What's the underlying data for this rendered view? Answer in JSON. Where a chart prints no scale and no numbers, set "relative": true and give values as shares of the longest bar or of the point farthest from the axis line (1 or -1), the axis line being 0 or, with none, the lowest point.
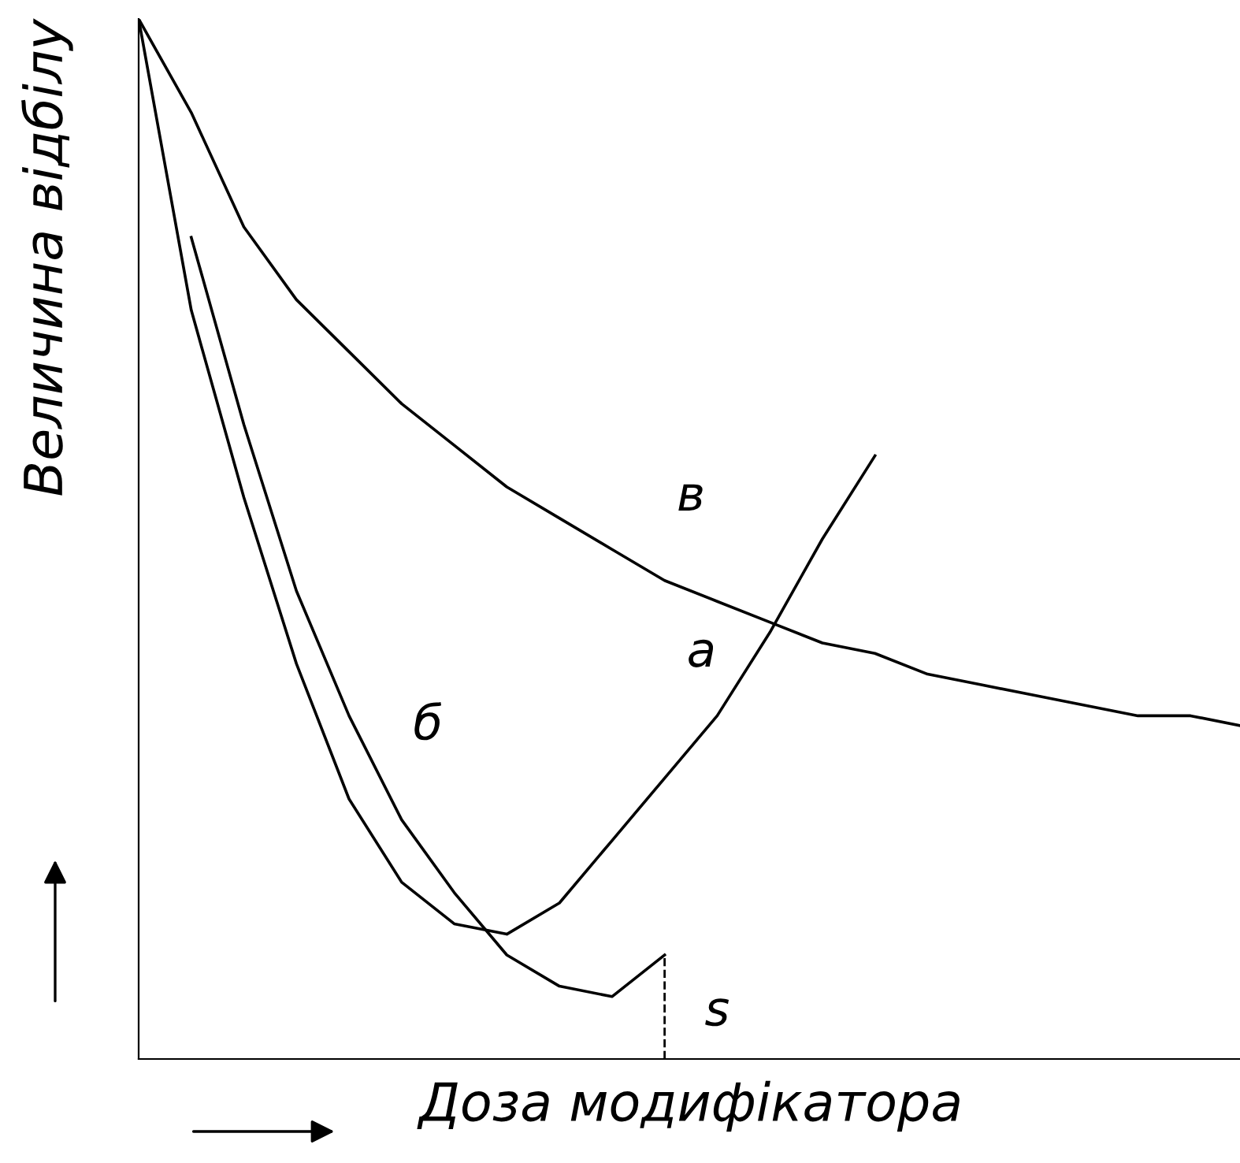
{
  "chart_data": {
    "type": "line",
    "relative": true,
    "xlabel": "Доза модифікатора",
    "ylabel": "Величина відбілу",
    "categories": [
      null,
      null,
      null,
      null,
      null,
      null,
      null,
      null,
      null,
      null,
      null,
      null,
      null,
      null,
      null,
      null,
      null,
      null,
      null,
      null,
      null,
      null
    ],
    "series": [
      {
        "name": "в",
        "color": "#000000",
        "values": [
          1.0,
          0.91,
          0.8,
          0.73,
          0.68,
          0.63,
          0.59,
          0.55,
          0.52,
          0.49,
          0.46,
          0.44,
          0.42,
          0.4,
          0.39,
          0.37,
          0.36,
          0.35,
          0.34,
          0.33,
          0.33,
          0.32
        ]
      },
      {
        "name": "а",
        "color": "#000000",
        "values": [
          1.0,
          0.72,
          0.54,
          0.38,
          0.25,
          0.17,
          0.13,
          0.12,
          0.15,
          0.21,
          0.27,
          0.33,
          0.41,
          0.5,
          0.58,
          null,
          null,
          null,
          null,
          null,
          null,
          null
        ]
      },
      {
        "name": "б",
        "color": "#000000",
        "values": [
          null,
          0.79,
          0.61,
          0.45,
          0.33,
          0.23,
          0.16,
          0.1,
          0.07,
          0.06,
          0.1,
          null,
          null,
          null,
          null,
          null,
          null,
          null,
          null,
          null,
          null,
          null
        ]
      }
    ],
    "annotations": [
      "s"
    ],
    "marker": "none",
    "line_style": "solid",
    "legend": false
  }
}
